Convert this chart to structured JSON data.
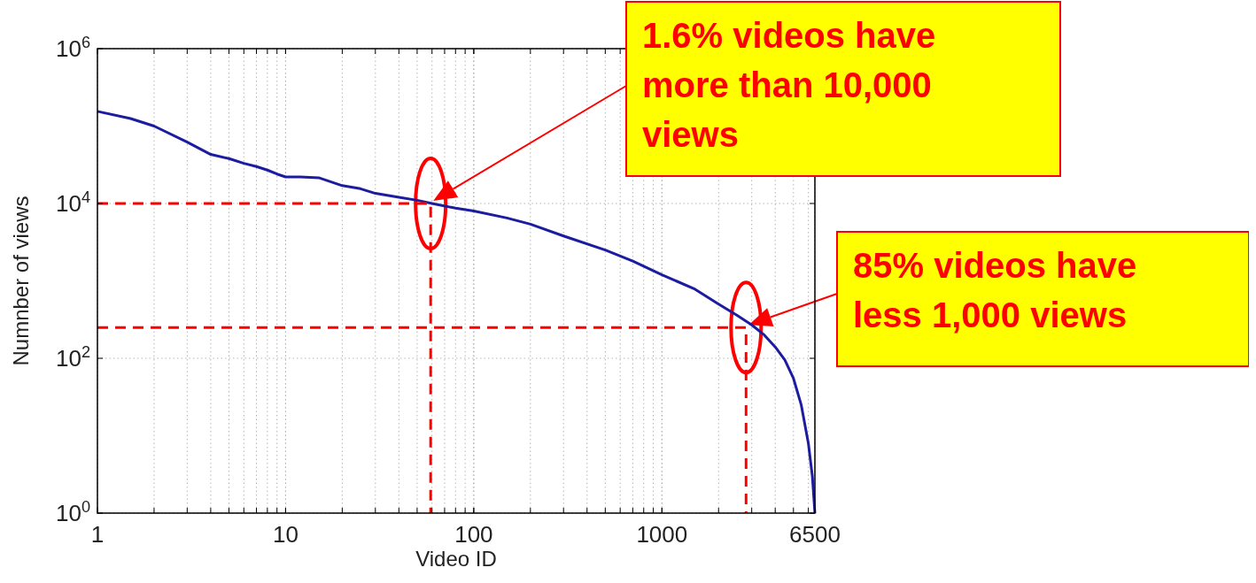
{
  "chart_data": {
    "type": "line",
    "xlabel": "Video ID",
    "ylabel": "Numnber of views",
    "log": "xy",
    "grid": true,
    "xlim": [
      1,
      6500
    ],
    "xticks": [
      1,
      10,
      100,
      1000,
      6500
    ],
    "ylim": [
      1,
      1000000
    ],
    "yticks": [
      {
        "value": 1,
        "label": "10$^{0}$"
      },
      {
        "value": 100,
        "label": "10$^{2}$"
      },
      {
        "value": 10000,
        "label": "10$^{4}$"
      },
      {
        "value": 1000000,
        "label": "10$^{6}$"
      }
    ],
    "series": [
      {
        "color": "#1c1ca0",
        "x": [
          1,
          1.5,
          2,
          3,
          4,
          5,
          6,
          7,
          8,
          9,
          10,
          12,
          15,
          20,
          25,
          30,
          40,
          50,
          60,
          80,
          100,
          150,
          200,
          300,
          500,
          700,
          1000,
          1500,
          2000,
          2500,
          3000,
          3500,
          4000,
          4500,
          5000,
          5500,
          6000,
          6300,
          6500
        ],
        "values": [
          155000,
          125000,
          100000,
          62000,
          43000,
          38000,
          33000,
          30000,
          27000,
          24000,
          22000,
          22000,
          21500,
          17000,
          15500,
          13500,
          12000,
          11000,
          10000,
          8700,
          8000,
          6500,
          5400,
          3800,
          2500,
          1800,
          1200,
          780,
          500,
          360,
          270,
          200,
          140,
          95,
          55,
          25,
          8,
          3,
          1
        ]
      },
      {
        "type": "line",
        "color": "#ff0000",
        "line_style": "dashed",
        "x": [
          1,
          59,
          59
        ],
        "values": [
          10000,
          10000,
          1
        ]
      },
      {
        "type": "line",
        "color": "#ff0000",
        "line_style": "dashed",
        "x": [
          1,
          2800,
          2800
        ],
        "values": [
          250,
          250,
          1
        ]
      }
    ],
    "annotations": [
      "1.6% videos have more than 10,000 views",
      "85% videos have less 1,000 views"
    ]
  }
}
